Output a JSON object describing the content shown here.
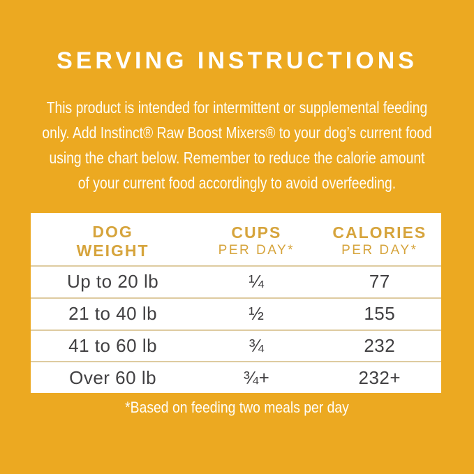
{
  "colors": {
    "background": "#ECA921",
    "table_background": "#FFFFFF",
    "header_text_gold": "#D6A43C",
    "body_text_dark": "#414042",
    "row_separator": "#DECBA0",
    "light_text": "#FFFFFF"
  },
  "heading": {
    "title": "SERVING INSTRUCTIONS"
  },
  "intro": {
    "lines": [
      "This product is intended for intermittent or supplemental feeding",
      "only. Add Instinct® Raw Boost Mixers® to your dog’s current food",
      "using the chart below. Remember to reduce the calorie amount",
      "of your current food accordingly to avoid overfeeding."
    ]
  },
  "table": {
    "headers": {
      "col1": {
        "line1": "DOG",
        "line2": "WEIGHT"
      },
      "col2": {
        "line1": "CUPS",
        "line2": "PER DAY*"
      },
      "col3": {
        "line1": "CALORIES",
        "line2": "PER DAY*"
      }
    },
    "rows": [
      {
        "weight": "Up to 20 lb",
        "cups": "¼",
        "calories": "77"
      },
      {
        "weight": "21 to 40 lb",
        "cups": "½",
        "calories": "155"
      },
      {
        "weight": "41 to 60 lb",
        "cups": "¾",
        "calories": "232"
      },
      {
        "weight": "Over 60 lb",
        "cups": "¾+",
        "calories": "232+"
      }
    ]
  },
  "footnote": "*Based on feeding two meals per day",
  "chart_data": {
    "type": "table",
    "title": "Serving Instructions",
    "columns": [
      "Dog Weight",
      "Cups Per Day*",
      "Calories Per Day*"
    ],
    "rows": [
      [
        "Up to 20 lb",
        "1/4",
        77
      ],
      [
        "21 to 40 lb",
        "1/2",
        155
      ],
      [
        "41 to 60 lb",
        "3/4",
        232
      ],
      [
        "Over 60 lb",
        "3/4+",
        "232+"
      ]
    ],
    "note": "*Based on feeding two meals per day"
  }
}
